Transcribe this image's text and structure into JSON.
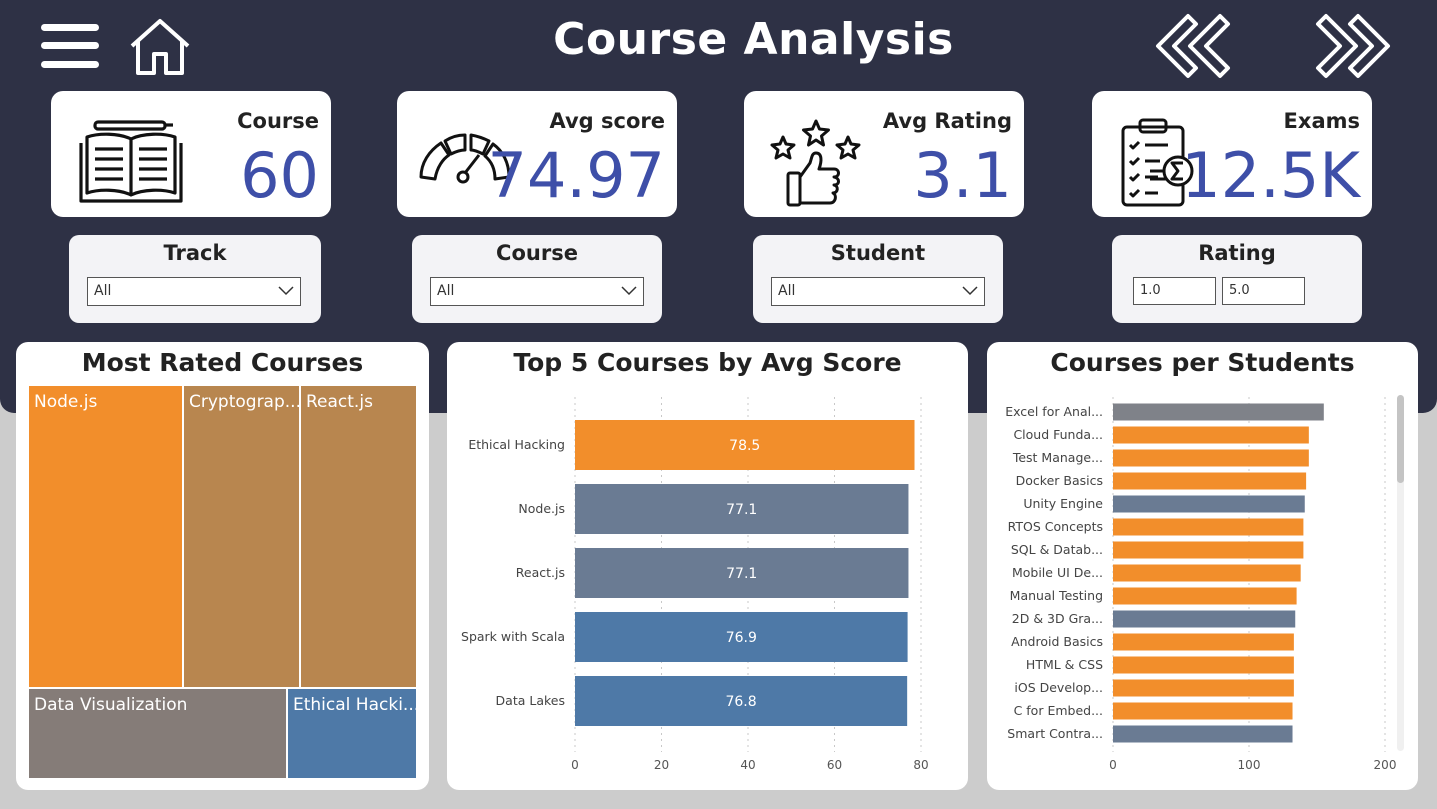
{
  "header": {
    "title": "Course Analysis",
    "menu_icon": "hamburger-icon",
    "home_icon": "home-icon",
    "back_icon": "double-chevron-left-icon",
    "forward_icon": "double-chevron-right-icon"
  },
  "kpis": [
    {
      "label": "Course",
      "value": "60",
      "icon": "open-book-icon"
    },
    {
      "label": "Avg score",
      "value": "74.97",
      "icon": "gauge-icon"
    },
    {
      "label": "Avg Rating",
      "value": "3.1",
      "icon": "thumbs-up-stars-icon"
    },
    {
      "label": "Exams",
      "value": "12.5K",
      "icon": "clipboard-checklist-icon"
    }
  ],
  "slicers": {
    "track": {
      "title": "Track",
      "value": "All"
    },
    "course": {
      "title": "Course",
      "value": "All"
    },
    "student": {
      "title": "Student",
      "value": "All"
    },
    "rating": {
      "title": "Rating",
      "min": "1.0",
      "max": "5.0"
    }
  },
  "colors": {
    "header_bg": "#2e3145",
    "kpi_value": "#3e4fa8",
    "orange": "#f28e2b",
    "brown": "#b8864f",
    "grey": "#857c78",
    "slate": "#6a7b93",
    "blue": "#4e79a7"
  },
  "treemap": {
    "title": "Most Rated Courses",
    "cells": [
      {
        "label": "Node.js",
        "color": "#f28e2b"
      },
      {
        "label": "Cryptograp...",
        "color": "#b8864f"
      },
      {
        "label": "React.js",
        "color": "#b8864f"
      },
      {
        "label": "Data Visualization",
        "color": "#857c78"
      },
      {
        "label": "Ethical Hacki...",
        "color": "#4e79a7"
      }
    ]
  },
  "chart_data": [
    {
      "type": "bar",
      "orientation": "horizontal",
      "title": "Top 5 Courses by Avg Score",
      "categories": [
        "Ethical Hacking",
        "Node.js",
        "React.js",
        "Spark with Scala",
        "Data Lakes"
      ],
      "values": [
        78.5,
        77.1,
        77.1,
        76.9,
        76.8
      ],
      "data_labels": [
        "78.5",
        "77.1",
        "77.1",
        "76.9",
        "76.8"
      ],
      "colors": [
        "#f28e2b",
        "#6a7b93",
        "#6a7b93",
        "#4e79a7",
        "#4e79a7"
      ],
      "xlim": [
        0,
        80
      ],
      "xticks": [
        "0",
        "20",
        "40",
        "60",
        "80"
      ],
      "grid": "vertical dotted"
    },
    {
      "type": "bar",
      "orientation": "horizontal",
      "title": "Courses per Students",
      "categories": [
        "Excel for Anal...",
        "Cloud Funda...",
        "Test Manage...",
        "Docker Basics",
        "Unity Engine",
        "RTOS Concepts",
        "SQL & Datab...",
        "Mobile UI De...",
        "Manual Testing",
        "2D & 3D Gra...",
        "Android Basics",
        "HTML & CSS",
        "iOS Develop...",
        "C for Embed...",
        "Smart Contra..."
      ],
      "values": [
        155,
        144,
        144,
        142,
        141,
        140,
        140,
        138,
        135,
        134,
        133,
        133,
        133,
        132,
        132
      ],
      "colors": [
        "#7f8289",
        "#f28e2b",
        "#f28e2b",
        "#f28e2b",
        "#6a7b93",
        "#f28e2b",
        "#f28e2b",
        "#f28e2b",
        "#f28e2b",
        "#6a7b93",
        "#f28e2b",
        "#f28e2b",
        "#f28e2b",
        "#f28e2b",
        "#6a7b93"
      ],
      "xlim": [
        0,
        200
      ],
      "xticks": [
        "0",
        "100",
        "200"
      ],
      "grid": "vertical dotted"
    }
  ]
}
